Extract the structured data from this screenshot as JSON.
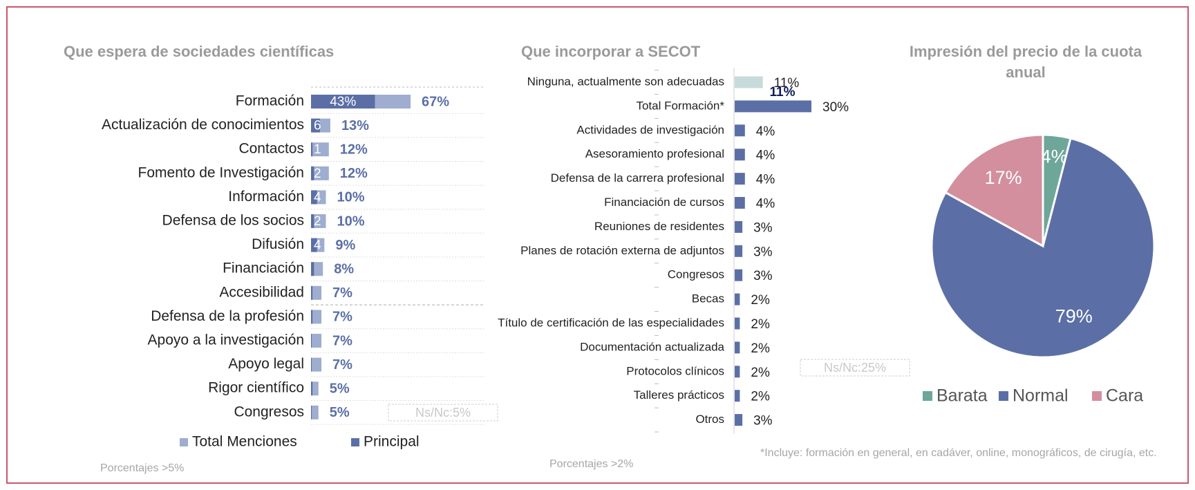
{
  "chart_data": [
    {
      "type": "bar",
      "orientation": "horizontal",
      "overlay": true,
      "title": "Que espera de sociedades científicas",
      "categories": [
        "Formación",
        "Actualización de conocimientos",
        "Contactos",
        "Fomento de Investigación",
        "Información",
        "Defensa de los socios",
        "Difusión",
        "Financiación",
        "Accesibilidad",
        "Defensa de la profesión",
        "Apoyo a la investigación",
        "Apoyo legal",
        "Rigor científico",
        "Congresos"
      ],
      "series": [
        {
          "name": "Total Menciones",
          "color": "#9eadd0",
          "values": [
            67,
            13,
            12,
            12,
            10,
            10,
            9,
            8,
            7,
            7,
            7,
            7,
            5,
            5
          ],
          "value_labels": [
            "67%",
            "13%",
            "12%",
            "12%",
            "10%",
            "10%",
            "9%",
            "8%",
            "7%",
            "7%",
            "7%",
            "7%",
            "5%",
            "5%"
          ]
        },
        {
          "name": "Principal",
          "color": "#5b6fa6",
          "values": [
            43,
            6,
            1,
            2,
            4,
            2,
            4,
            2,
            1,
            1,
            0.5,
            0.5,
            1,
            0.5
          ],
          "value_labels": [
            "43%",
            "6",
            "1",
            "2",
            "4",
            "2",
            "4",
            null,
            null,
            null,
            null,
            null,
            null,
            null
          ]
        }
      ],
      "annotations": [
        "Ns/Nc:5%"
      ],
      "footnote": "Porcentajes >5%",
      "legend": "bottom"
    },
    {
      "type": "bar",
      "orientation": "horizontal",
      "title": "Que incorporar a SECOT",
      "categories": [
        "Ninguna, actualmente son adecuadas",
        "Total Formación*",
        "Actividades de investigación",
        "Asesoramiento profesional",
        "Defensa de la carrera profesional",
        "Financiación de cursos",
        "Reuniones de residentes",
        "Planes de rotación externa de adjuntos",
        "Congresos",
        "Becas",
        "Título de certificación de las especialidades",
        "Documentación actualizada",
        "Protocolos clínicos",
        "Talleres prácticos",
        "Otros"
      ],
      "values": [
        11,
        30,
        4,
        4,
        4,
        4,
        3,
        3,
        3,
        2,
        2,
        2,
        2,
        2,
        3
      ],
      "value_labels": [
        "11%",
        "30%",
        "4%",
        "4%",
        "4%",
        "4%",
        "3%",
        "3%",
        "3%",
        "2%",
        "2%",
        "2%",
        "2%",
        "2%",
        "3%"
      ],
      "colors": [
        "#c6dbda",
        "#5b6fa6",
        "#5b6fa6",
        "#5b6fa6",
        "#5b6fa6",
        "#5b6fa6",
        "#5b6fa6",
        "#5b6fa6",
        "#5b6fa6",
        "#5b6fa6",
        "#5b6fa6",
        "#5b6fa6",
        "#5b6fa6",
        "#5b6fa6",
        "#5b6fa6"
      ],
      "annotations": [
        "11%",
        "Ns/Nc:25%"
      ],
      "footnote": "Porcentajes >2%",
      "note": "*Incluye: formación en general, en cadáver, online, monográficos, de cirugía, etc."
    },
    {
      "type": "pie",
      "title": "Impresión del precio de la cuota anual",
      "categories": [
        "Barata",
        "Normal",
        "Cara"
      ],
      "values": [
        4,
        79,
        17
      ],
      "value_labels": [
        "4%",
        "79%",
        "17%"
      ],
      "colors": [
        "#6ea69a",
        "#5b6fa6",
        "#d38f9e"
      ],
      "legend": "bottom"
    }
  ]
}
